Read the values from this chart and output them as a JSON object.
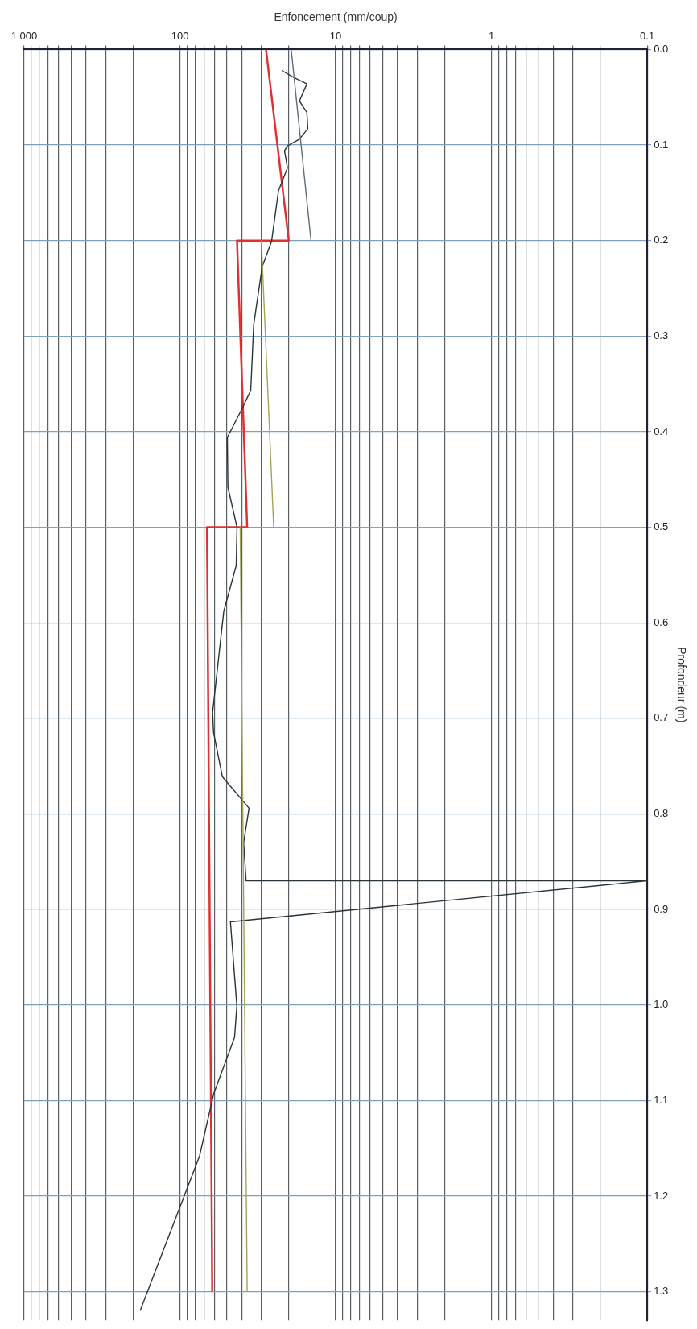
{
  "chart_data": {
    "type": "line",
    "xlabel": "Enfoncement (mm/coup)",
    "ylabel": "Profondeur (m)",
    "log": "x",
    "grid": true,
    "legend": false,
    "marker": "none",
    "line_style": "solid",
    "xlim": [
      1000,
      0.1
    ],
    "ylim": [
      1.33,
      0
    ],
    "xticks": [
      {
        "value": 1000,
        "label": "1 000"
      },
      {
        "value": 900,
        "label": null
      },
      {
        "value": 800,
        "label": null
      },
      {
        "value": 700,
        "label": null
      },
      {
        "value": 600,
        "label": null
      },
      {
        "value": 500,
        "label": null
      },
      {
        "value": 400,
        "label": null
      },
      {
        "value": 300,
        "label": null
      },
      {
        "value": 200,
        "label": null
      },
      100,
      {
        "value": 90,
        "label": null
      },
      {
        "value": 80,
        "label": null
      },
      {
        "value": 70,
        "label": null
      },
      {
        "value": 60,
        "label": null
      },
      {
        "value": 50,
        "label": null
      },
      {
        "value": 40,
        "label": null
      },
      {
        "value": 30,
        "label": null
      },
      {
        "value": 20,
        "label": null
      },
      10,
      {
        "value": 9,
        "label": null
      },
      {
        "value": 8,
        "label": null
      },
      {
        "value": 7,
        "label": null
      },
      {
        "value": 6,
        "label": null
      },
      {
        "value": 5,
        "label": null
      },
      {
        "value": 4,
        "label": null
      },
      {
        "value": 3,
        "label": null
      },
      {
        "value": 2,
        "label": null
      },
      1,
      {
        "value": 0.9,
        "label": null
      },
      {
        "value": 0.8,
        "label": null
      },
      {
        "value": 0.7,
        "label": null
      },
      {
        "value": 0.6,
        "label": null
      },
      {
        "value": 0.5,
        "label": null
      },
      {
        "value": 0.4,
        "label": null
      },
      {
        "value": 0.3,
        "label": null
      },
      {
        "value": 0.2,
        "label": null
      },
      0.1
    ],
    "yticks": [
      {
        "value": 0,
        "label": "0.0"
      },
      0.1,
      0.2,
      0.3,
      0.4,
      0.5,
      0.6,
      0.7,
      0.8,
      0.9,
      {
        "value": 1,
        "label": "1.0"
      },
      1.1,
      1.2,
      1.3
    ],
    "series": [
      {
        "color": "#a3a35a",
        "x": [
          30,
          25,
          null,
          41,
          37
        ],
        "values": [
          0.2,
          0.5,
          null,
          0.5,
          1.3
        ]
      },
      {
        "color": "#5f6e78",
        "x": [
          19.3,
          14.4
        ],
        "values": [
          0,
          0.2
        ]
      },
      {
        "color": "#2a3338",
        "x": [
          22.2,
          18.7,
          15.3,
          17.1,
          15.3,
          15.1,
          17.1,
          20.4,
          21.3,
          20.4,
          23.3,
          25.8,
          29.6,
          33.6,
          35.1,
          40.8,
          49.6,
          49.2,
          43,
          43.5,
          52.3,
          61.7,
          60.8,
          53.4,
          36,
          39,
          37.6,
          0.1,
          47.4,
          43.1,
          44.6,
          60.7,
          74.8,
          180
        ],
        "values": [
          0.022,
          0.029,
          0.036,
          0.054,
          0.066,
          0.083,
          0.094,
          0.101,
          0.106,
          0.124,
          0.148,
          0.201,
          0.227,
          0.288,
          0.357,
          0.379,
          0.406,
          0.458,
          0.5,
          0.54,
          0.588,
          0.694,
          0.715,
          0.761,
          0.794,
          0.83,
          0.87,
          0.87,
          0.913,
          1.001,
          1.034,
          1.093,
          1.158,
          1.32
        ]
      },
      {
        "color": "#e03030",
        "x": [
          28,
          20,
          43,
          37,
          67,
          62
        ],
        "values": [
          0,
          0.2,
          0.2,
          0.5,
          0.5,
          1.3
        ]
      }
    ]
  }
}
